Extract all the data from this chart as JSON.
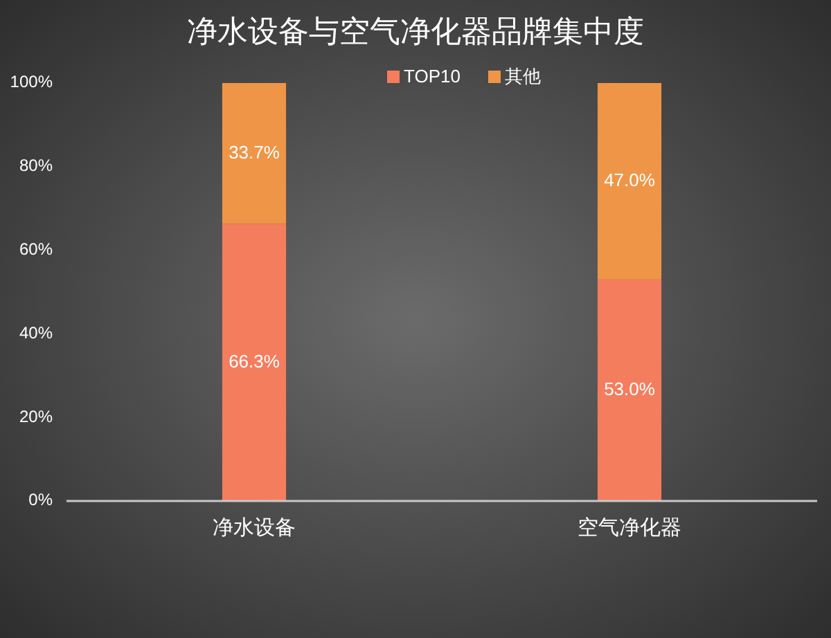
{
  "chart_data": {
    "type": "bar",
    "title": "净水设备与空气净化器品牌集中度",
    "categories": [
      "净水设备",
      "空气净化器"
    ],
    "stacked": true,
    "series": [
      {
        "name": "TOP10",
        "color": "#f47d5e",
        "values": [
          66.3,
          53.0
        ],
        "value_labels": [
          "66.3%",
          "53.0%"
        ]
      },
      {
        "name": "其他",
        "color": "#ef9547",
        "values": [
          33.7,
          47.0
        ],
        "value_labels": [
          "33.7%",
          "47.0%"
        ]
      }
    ],
    "ylim": [
      0,
      100
    ],
    "yticks": [
      {
        "value": 0,
        "label": "0%"
      },
      {
        "value": 20,
        "label": "20%"
      },
      {
        "value": 40,
        "label": "40%"
      },
      {
        "value": 60,
        "label": "60%"
      },
      {
        "value": 80,
        "label": "80%"
      },
      {
        "value": 100,
        "label": "100%"
      }
    ],
    "legend": "top",
    "grid": false
  }
}
